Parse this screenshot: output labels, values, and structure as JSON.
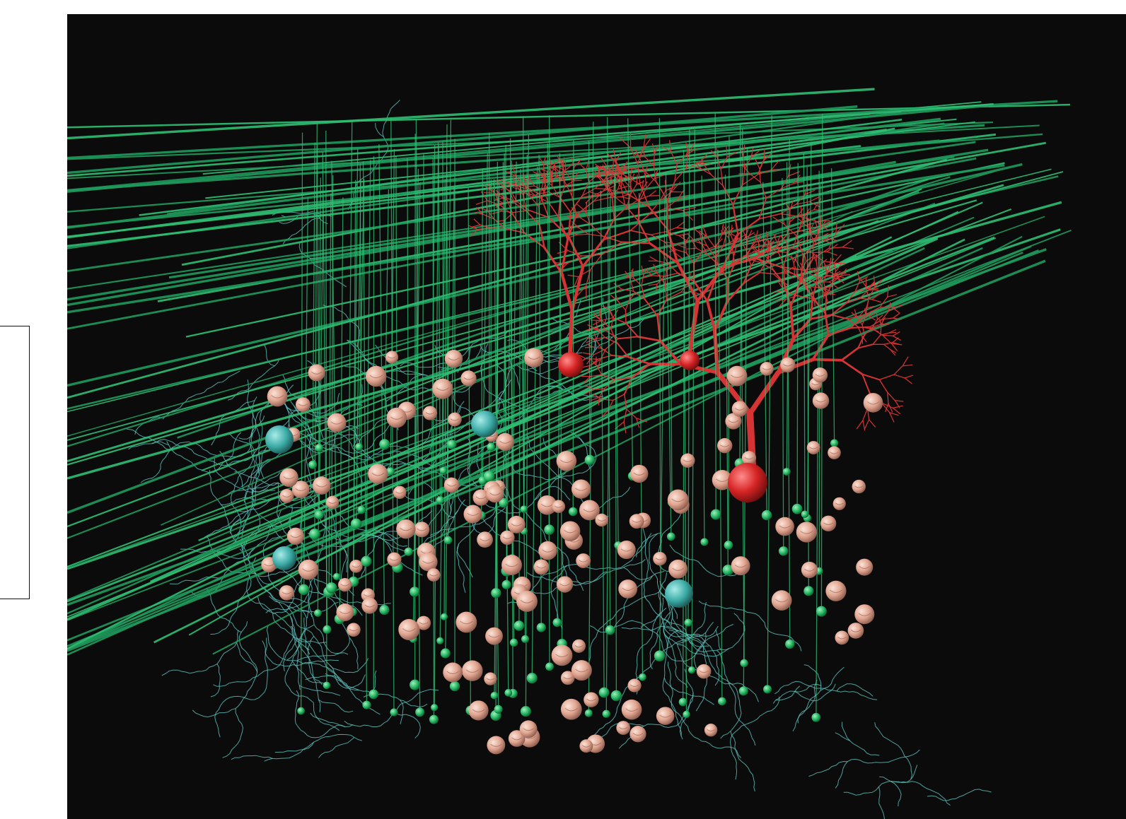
{
  "scene": {
    "background": "#0b0b0b",
    "colors": {
      "parallel_fiber": "#1f9a5c",
      "parallel_fiber_light": "#2fbf74",
      "purkinje_dendrite": "#d63434",
      "purkinje_soma": "#e02a2a",
      "granule_cell": "#e8b3a0",
      "granule_axon_bead": "#2ecc6e",
      "golgi_cell": "#4bb6b0",
      "golgi_axon": "#5fc6c0"
    },
    "icons": {
      "granule": "sphere",
      "golgi": "sphere",
      "purkinje_soma": "sphere"
    }
  }
}
